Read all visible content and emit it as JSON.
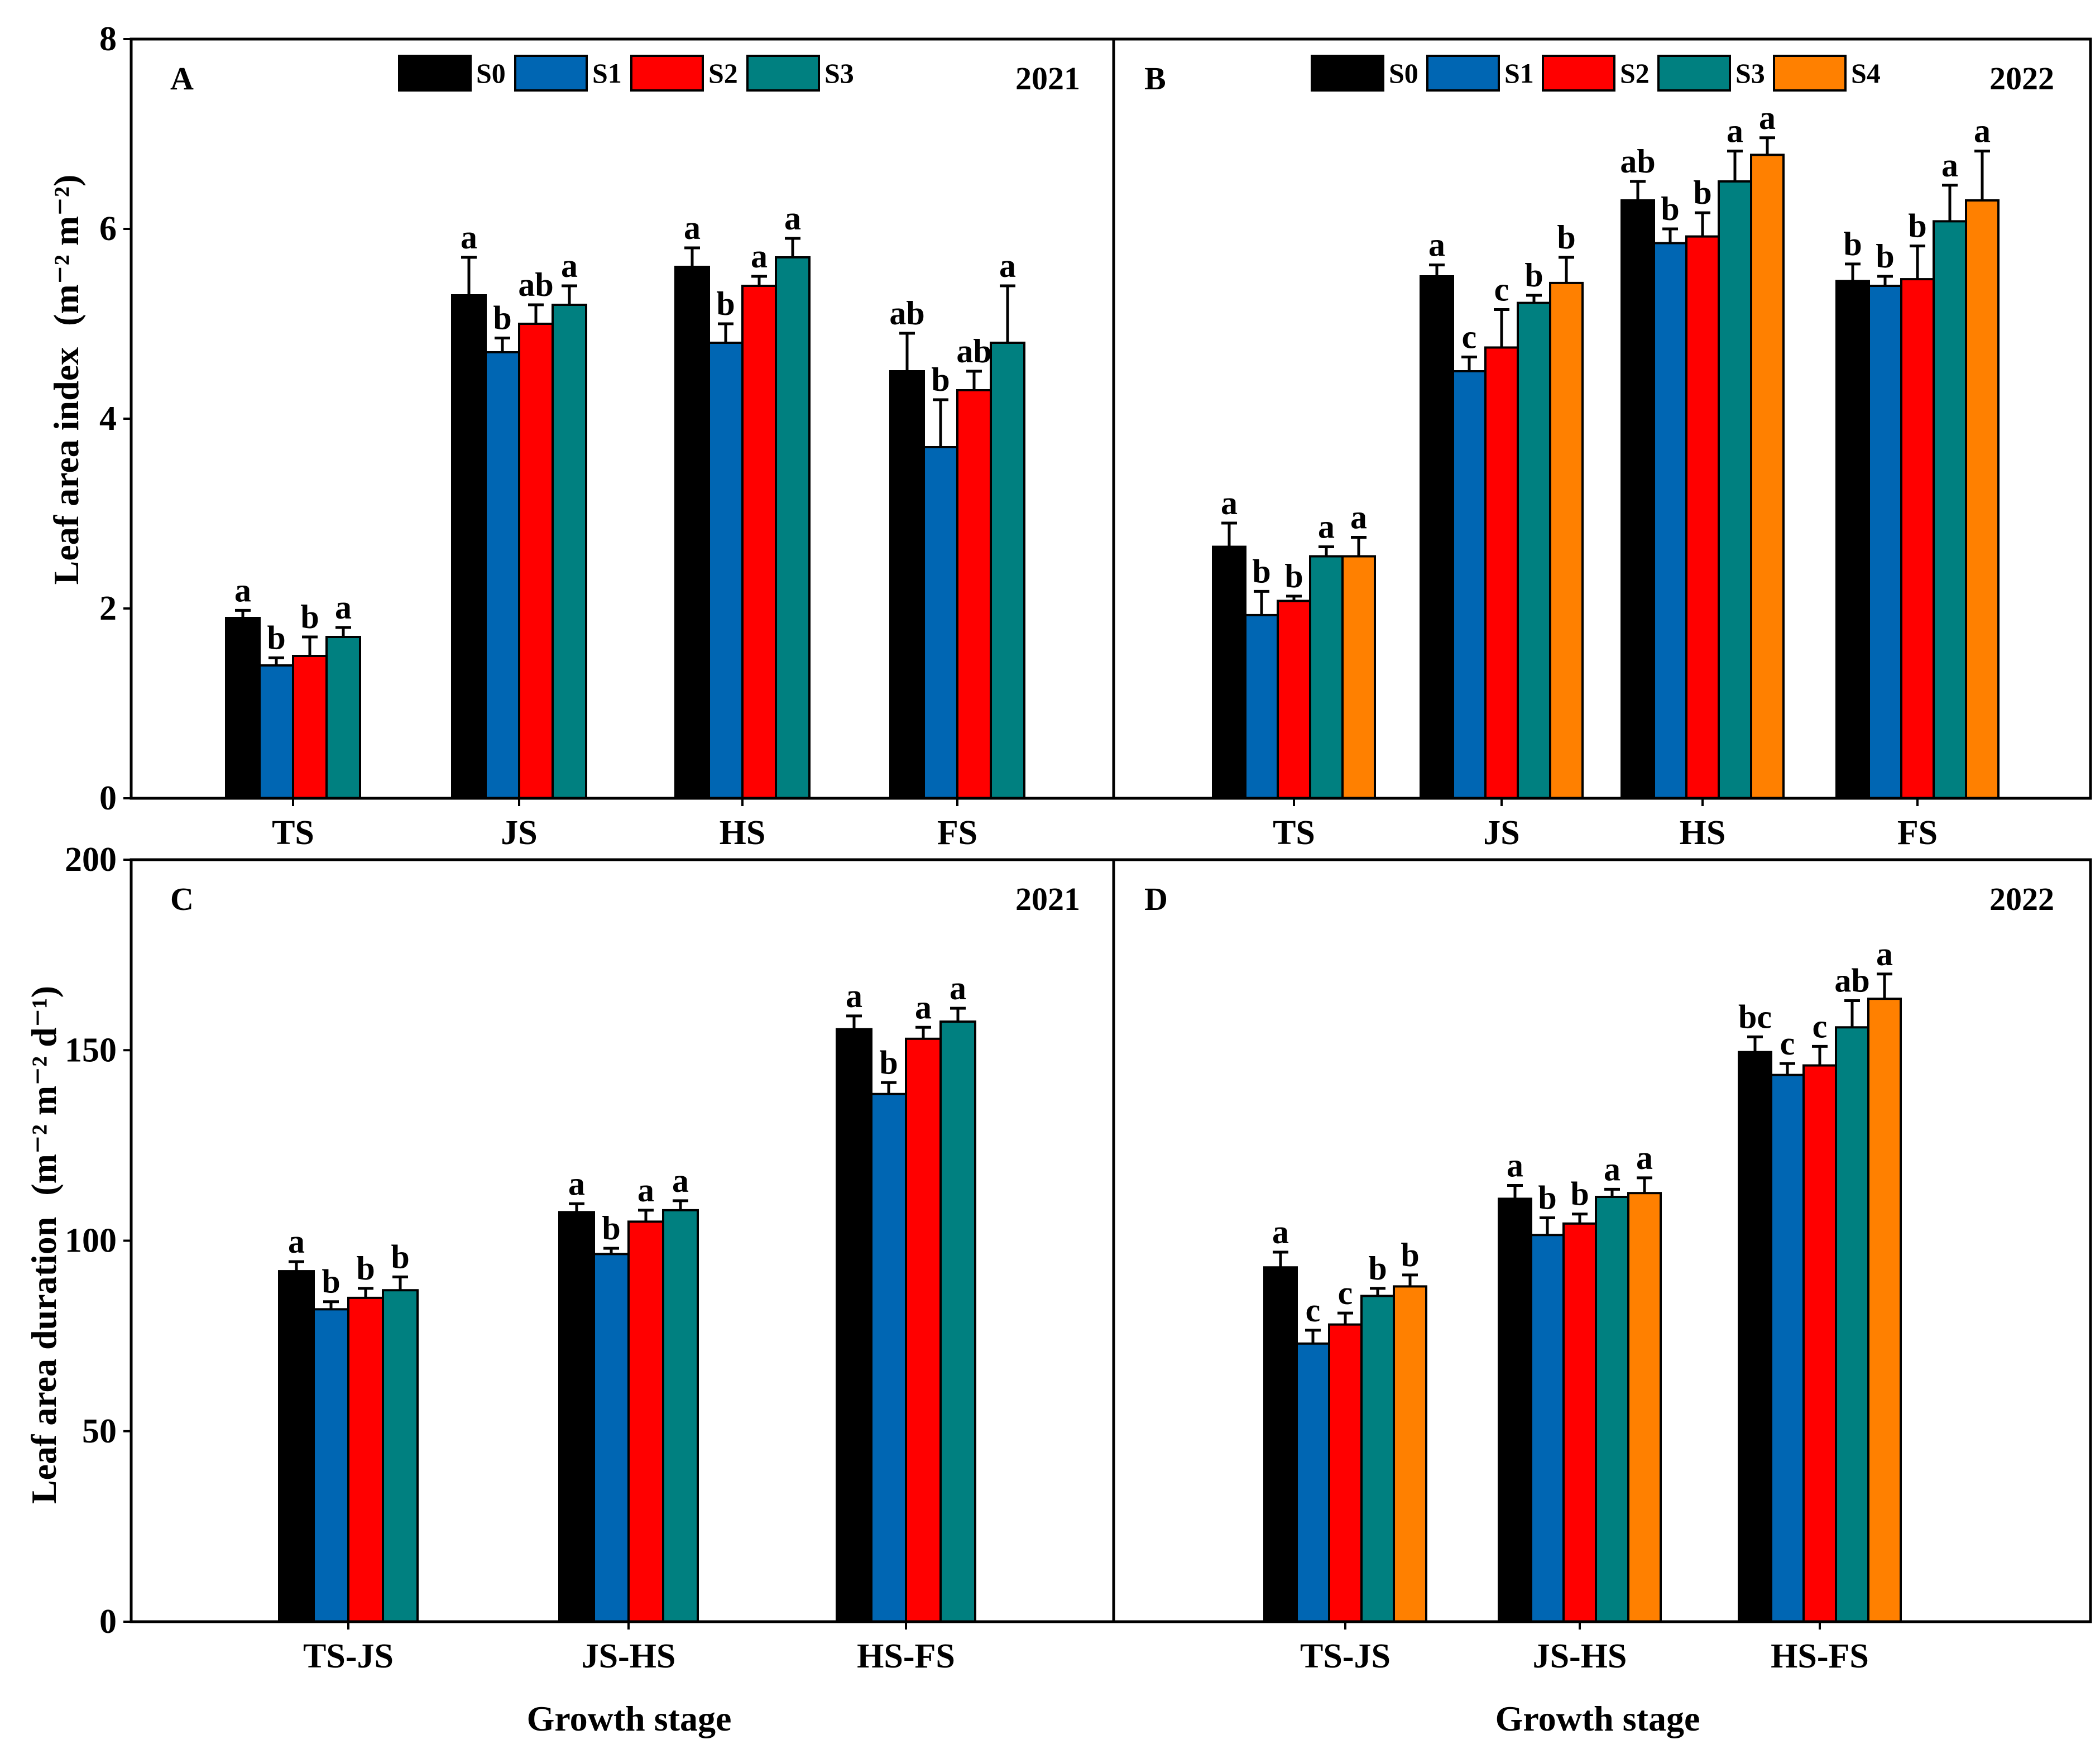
{
  "chart_data": [
    {
      "panel": "A",
      "type": "bar",
      "year": "2021",
      "categories": [
        "TS",
        "JS",
        "HS",
        "FS"
      ],
      "ylabel": "Leaf area index",
      "ylabel_unit": "(m⁻² m⁻²)",
      "xlabel": "",
      "ylim": [
        0,
        8
      ],
      "yticks": [
        "0",
        "2",
        "4",
        "6",
        "8"
      ],
      "series": [
        {
          "name": "S0",
          "values": [
            1.9,
            5.3,
            5.6,
            4.5
          ],
          "errors": [
            0.08,
            0.4,
            0.2,
            0.4
          ],
          "labels": [
            "a",
            "a",
            "a",
            "ab"
          ]
        },
        {
          "name": "S1",
          "values": [
            1.4,
            4.7,
            4.8,
            3.7
          ],
          "errors": [
            0.08,
            0.15,
            0.2,
            0.5
          ],
          "labels": [
            "b",
            "b",
            "b",
            "b"
          ]
        },
        {
          "name": "S2",
          "values": [
            1.5,
            5.0,
            5.4,
            4.3
          ],
          "errors": [
            0.2,
            0.2,
            0.1,
            0.2
          ],
          "labels": [
            "b",
            "ab",
            "a",
            "ab"
          ]
        },
        {
          "name": "S3",
          "values": [
            1.7,
            5.2,
            5.7,
            4.8
          ],
          "errors": [
            0.1,
            0.2,
            0.2,
            0.6
          ],
          "labels": [
            "a",
            "a",
            "a",
            "a"
          ]
        }
      ]
    },
    {
      "panel": "B",
      "type": "bar",
      "year": "2022",
      "categories": [
        "TS",
        "JS",
        "HS",
        "FS"
      ],
      "ylabel": "",
      "xlabel": "",
      "ylim": [
        0,
        8
      ],
      "series": [
        {
          "name": "S0",
          "values": [
            2.65,
            5.5,
            6.3,
            5.45
          ],
          "errors": [
            0.25,
            0.12,
            0.2,
            0.18
          ],
          "labels": [
            "a",
            "a",
            "ab",
            "b"
          ]
        },
        {
          "name": "S1",
          "values": [
            1.93,
            4.5,
            5.85,
            5.4
          ],
          "errors": [
            0.25,
            0.15,
            0.15,
            0.1
          ],
          "labels": [
            "b",
            "c",
            "b",
            "b"
          ]
        },
        {
          "name": "S2",
          "values": [
            2.08,
            4.75,
            5.92,
            5.47
          ],
          "errors": [
            0.05,
            0.4,
            0.25,
            0.35
          ],
          "labels": [
            "b",
            "c",
            "b",
            "b"
          ]
        },
        {
          "name": "S3",
          "values": [
            2.55,
            5.22,
            6.5,
            6.08
          ],
          "errors": [
            0.1,
            0.08,
            0.32,
            0.38
          ],
          "labels": [
            "a",
            "b",
            "a",
            "a"
          ]
        },
        {
          "name": "S4",
          "values": [
            2.55,
            5.43,
            6.78,
            6.3
          ],
          "errors": [
            0.2,
            0.27,
            0.18,
            0.52
          ],
          "labels": [
            "a",
            "b",
            "a",
            "a"
          ]
        }
      ]
    },
    {
      "panel": "C",
      "type": "bar",
      "year": "2021",
      "categories": [
        "TS-JS",
        "JS-HS",
        "HS-FS"
      ],
      "ylabel": "Leaf area  duration",
      "ylabel_unit": "(m⁻² m⁻² d⁻¹)",
      "xlabel": "Growth stage",
      "ylim": [
        0,
        200
      ],
      "yticks": [
        "0",
        "50",
        "100",
        "150",
        "200"
      ],
      "series": [
        {
          "name": "S0",
          "values": [
            92,
            107.5,
            155.5
          ],
          "errors": [
            2.5,
            2.2,
            3.5
          ],
          "labels": [
            "a",
            "a",
            "a"
          ]
        },
        {
          "name": "S1",
          "values": [
            82,
            96.5,
            138.5
          ],
          "errors": [
            2,
            1.5,
            3
          ],
          "labels": [
            "b",
            "b",
            "b"
          ]
        },
        {
          "name": "S2",
          "values": [
            85,
            105,
            153
          ],
          "errors": [
            2.5,
            3,
            3
          ],
          "labels": [
            "b",
            "a",
            "a"
          ]
        },
        {
          "name": "S3",
          "values": [
            87,
            108,
            157.5
          ],
          "errors": [
            3.5,
            2.5,
            3.5
          ],
          "labels": [
            "b",
            "a",
            "a"
          ]
        }
      ]
    },
    {
      "panel": "D",
      "type": "bar",
      "year": "2022",
      "categories": [
        "TS-JS",
        "JS-HS",
        "HS-FS"
      ],
      "ylabel": "",
      "xlabel": "Growth stage",
      "ylim": [
        0,
        200
      ],
      "series": [
        {
          "name": "S0",
          "values": [
            93,
            111,
            149.5
          ],
          "errors": [
            4,
            3.5,
            4
          ],
          "labels": [
            "a",
            "a",
            "bc"
          ]
        },
        {
          "name": "S1",
          "values": [
            73,
            101.5,
            143.5
          ],
          "errors": [
            3.5,
            4.5,
            3
          ],
          "labels": [
            "c",
            "b",
            "c"
          ]
        },
        {
          "name": "S2",
          "values": [
            78,
            104.5,
            146
          ],
          "errors": [
            3,
            2.5,
            5
          ],
          "labels": [
            "c",
            "b",
            "c"
          ]
        },
        {
          "name": "S3",
          "values": [
            85.5,
            111.5,
            156
          ],
          "errors": [
            2,
            2,
            7
          ],
          "labels": [
            "b",
            "a",
            "ab"
          ]
        },
        {
          "name": "S4",
          "values": [
            88,
            112.5,
            163.5
          ],
          "errors": [
            3,
            4,
            6.5
          ],
          "labels": [
            "b",
            "a",
            "a"
          ]
        }
      ]
    }
  ],
  "colors": {
    "S0": "#000000",
    "S1": "#0066b3",
    "S2": "#ff0000",
    "S3": "#008080",
    "S4": "#ff8000"
  }
}
